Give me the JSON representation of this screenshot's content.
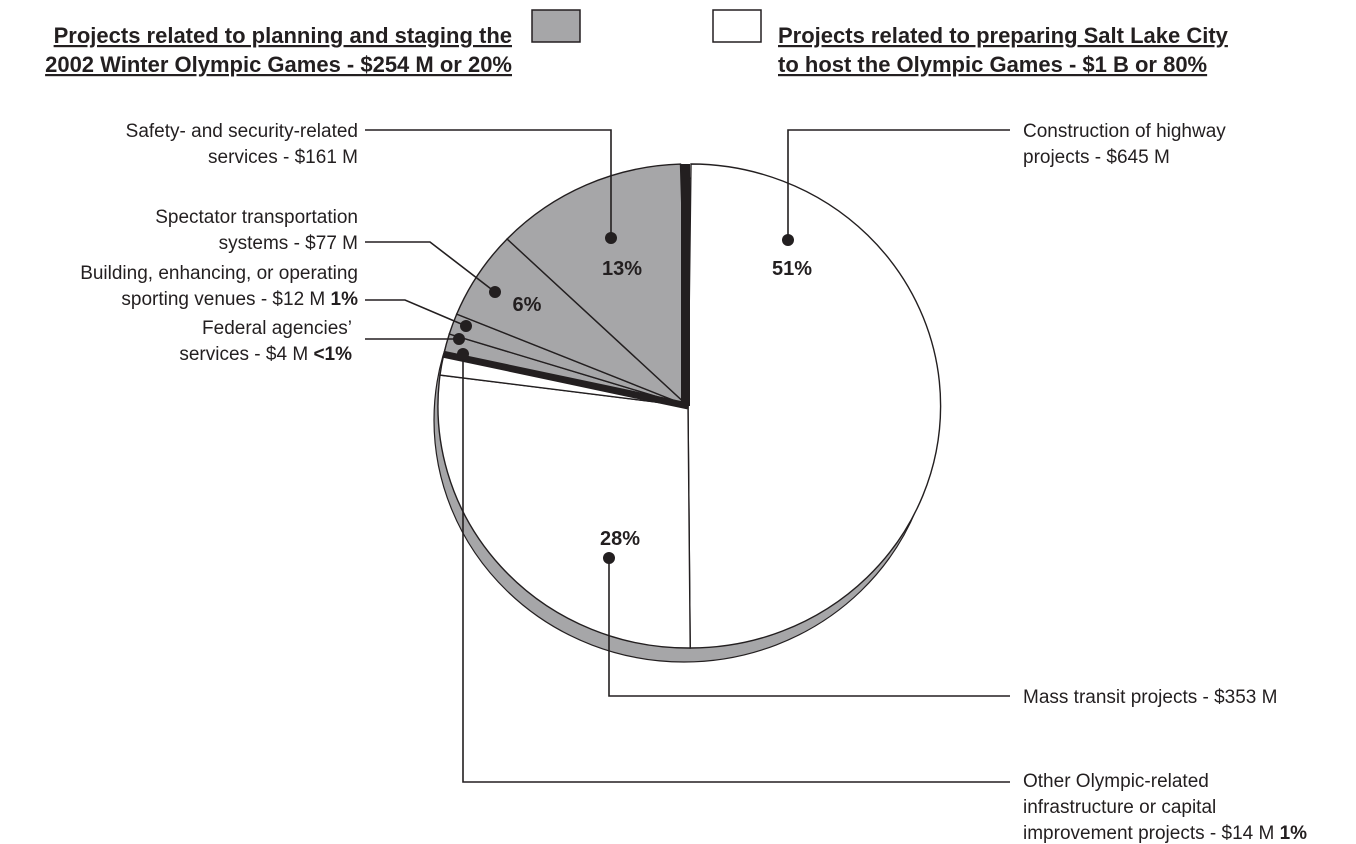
{
  "legend": {
    "planning": {
      "line1": "Projects related to planning and staging the",
      "line2": "2002 Winter Olympic Games - $254 M or 20%",
      "swatch_color": "#a6a6a8"
    },
    "preparing": {
      "line1": "Projects related to preparing Salt Lake City",
      "line2": "to host the Olympic Games - $1 B or 80%",
      "swatch_color": "#ffffff"
    }
  },
  "chart_data": {
    "type": "pie",
    "groups": [
      {
        "name": "Projects related to planning and staging the 2002 Winter Olympic Games",
        "value_label": "$254 M",
        "percent": 20,
        "color": "#a6a6a8"
      },
      {
        "name": "Projects related to preparing Salt Lake City to host the Olympic Games",
        "value_label": "$1 B",
        "percent": 80,
        "color": "#ffffff"
      }
    ],
    "slices": [
      {
        "id": "highway",
        "group": "preparing",
        "value": 645,
        "percent_label": "51%",
        "lines": [
          {
            "t": "Construction of highway"
          },
          {
            "t": "projects - $645 M"
          }
        ]
      },
      {
        "id": "transit",
        "group": "preparing",
        "value": 353,
        "percent_label": "28%",
        "lines": [
          {
            "t": "Mass transit projects - $353 M"
          }
        ]
      },
      {
        "id": "other",
        "group": "preparing",
        "value": 14,
        "percent_label": "",
        "lines": [
          {
            "t": "Other Olympic-related"
          },
          {
            "t": "infrastructure or capital"
          },
          {
            "t": "improvement projects - $14 M ",
            "b": "1%"
          }
        ]
      },
      {
        "id": "federal",
        "group": "planning",
        "value": 4,
        "percent_label": "",
        "lines": [
          {
            "t": "Federal agencies’"
          },
          {
            "t": "services - $4 M ",
            "b": "<1%"
          }
        ]
      },
      {
        "id": "venues",
        "group": "planning",
        "value": 12,
        "percent_label": "",
        "lines": [
          {
            "t": "Building, enhancing, or operating"
          },
          {
            "t": "sporting venues - $12 M ",
            "b": "1%"
          }
        ]
      },
      {
        "id": "spectator",
        "group": "planning",
        "value": 77,
        "percent_label": "6%",
        "lines": [
          {
            "t": "Spectator transportation"
          },
          {
            "t": "systems - $77 M"
          }
        ]
      },
      {
        "id": "safety",
        "group": "planning",
        "value": 161,
        "percent_label": "13%",
        "lines": [
          {
            "t": "Safety- and security-related"
          },
          {
            "t": "services - $161 M"
          }
        ]
      }
    ],
    "colors": {
      "planning": "#a6a6a8",
      "preparing": "#ffffff",
      "outline": "#231f20",
      "separator": "#231f20"
    }
  }
}
